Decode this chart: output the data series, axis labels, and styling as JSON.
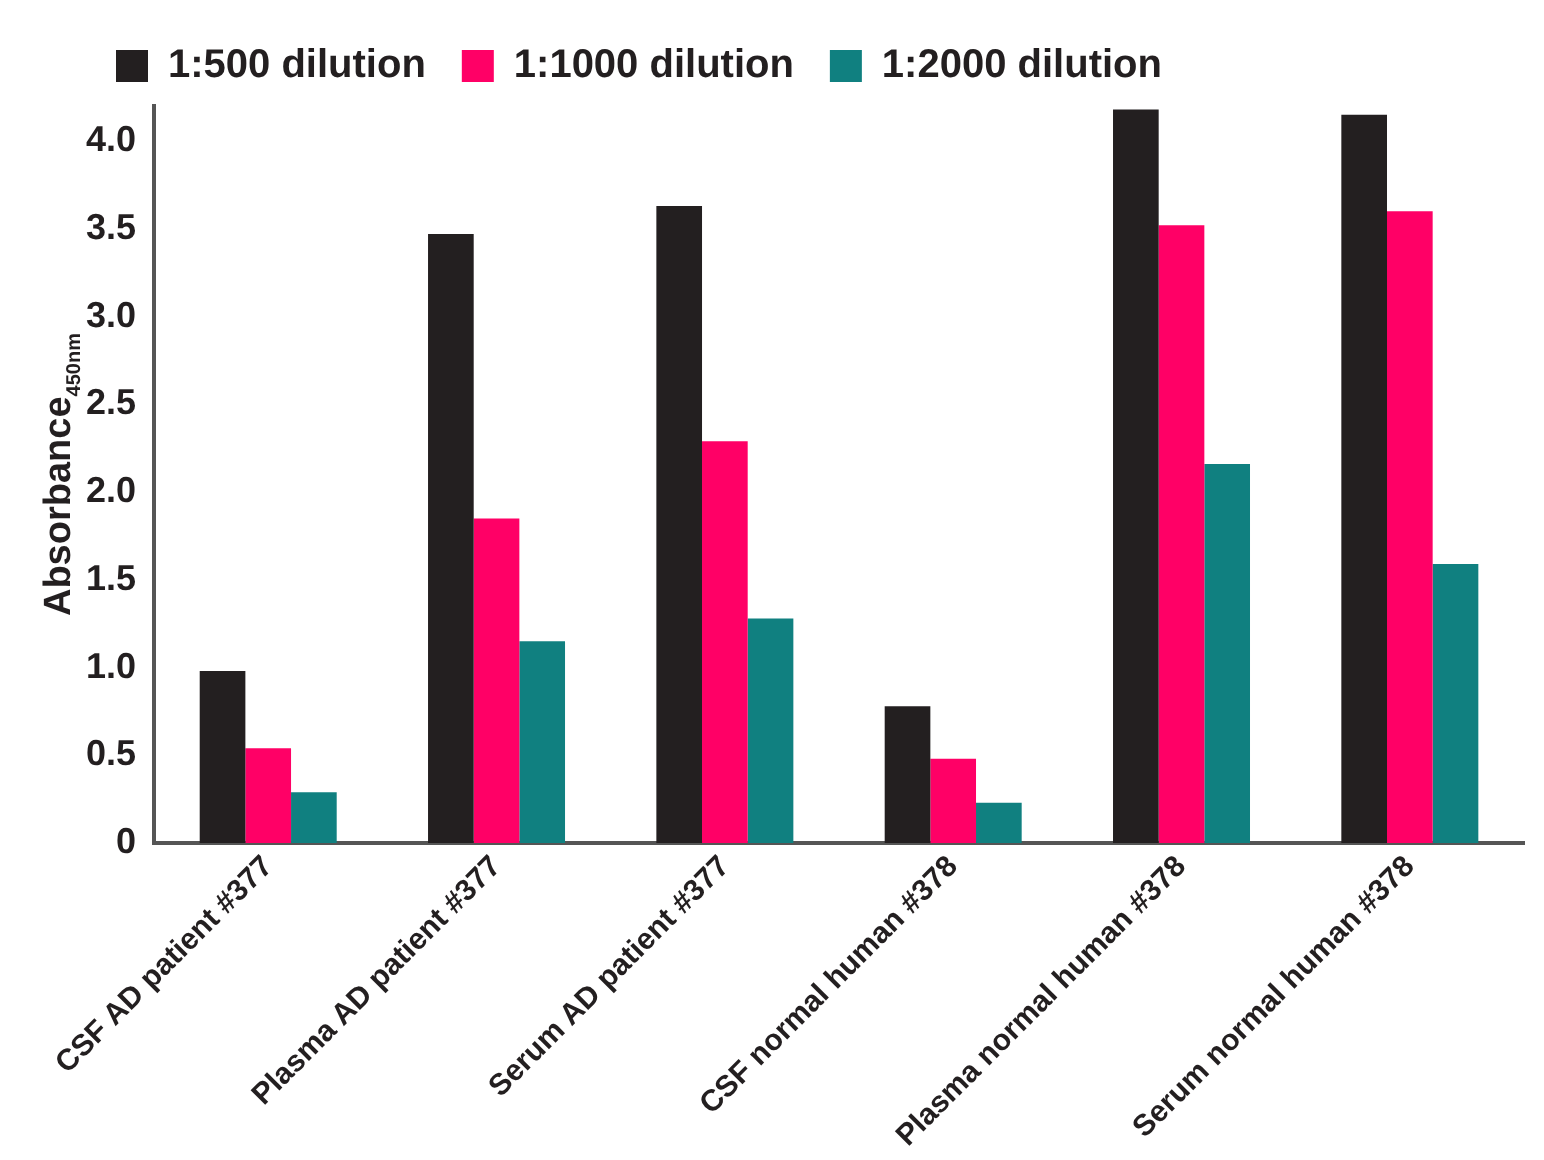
{
  "chart_data": {
    "type": "bar",
    "ylabel": "Absorbance$_{450nm}$",
    "categories": [
      "CSF AD patient #377",
      "Plasma AD patient #377",
      "Serum AD patient #377",
      "CSF normal human #378",
      "Plasma normal human #378",
      "Serum normal human #378"
    ],
    "series": [
      {
        "name": "1:500 dilution",
        "color": "#231f20",
        "values": [
          0.98,
          3.47,
          3.63,
          0.78,
          4.18,
          4.15
        ]
      },
      {
        "name": "1:1000 dilution",
        "color": "#ff0066",
        "values": [
          0.54,
          1.85,
          2.29,
          0.48,
          3.52,
          3.6
        ]
      },
      {
        "name": "1:2000 dilution",
        "color": "#108080",
        "values": [
          0.29,
          1.15,
          1.28,
          0.23,
          2.16,
          1.59
        ]
      }
    ],
    "ylim": [
      0,
      4.2
    ],
    "yticks": [
      0,
      0.5,
      {
        "value": 1,
        "label": "1.0"
      },
      1.5,
      {
        "value": 2,
        "label": "2.0"
      },
      2.5,
      {
        "value": 3,
        "label": "3.0"
      },
      3.5,
      {
        "value": 4,
        "label": "4.0"
      }
    ],
    "grid": false,
    "legend": "top left"
  }
}
